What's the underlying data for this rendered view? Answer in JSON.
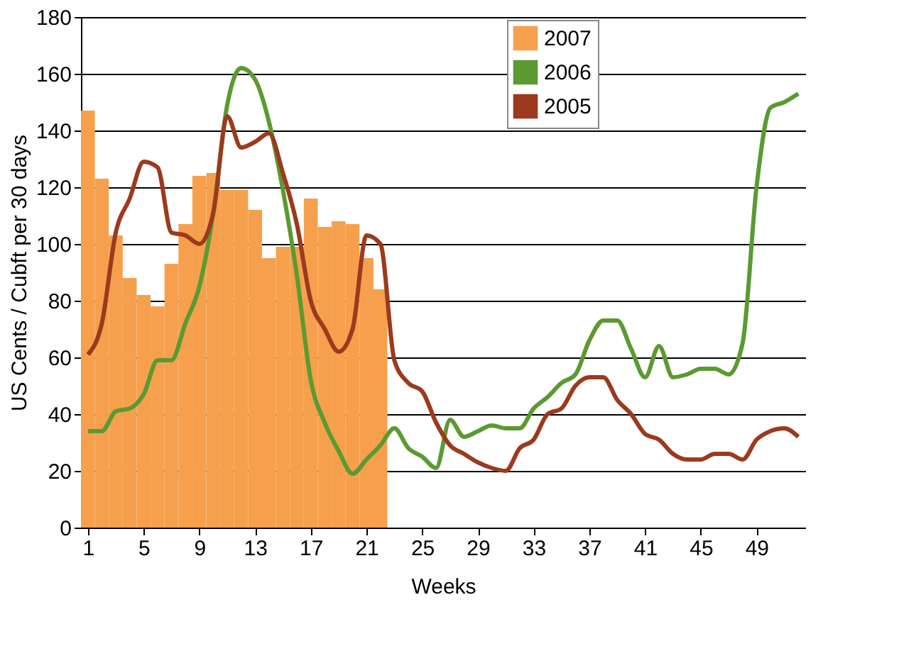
{
  "chart_data": {
    "type": "line",
    "xlabel": "Weeks",
    "ylabel": "US Cents / Cubft per 30 days",
    "xlim": [
      0.5,
      52.5
    ],
    "xticks": [
      1,
      5,
      9,
      13,
      17,
      21,
      25,
      29,
      33,
      37,
      41,
      45,
      49
    ],
    "ylim": [
      0,
      180
    ],
    "yticks": [
      0,
      20,
      40,
      60,
      80,
      100,
      120,
      140,
      160,
      180
    ],
    "grid": "y",
    "legend": "top right",
    "series": [
      {
        "name": "2007",
        "type": "bar",
        "color": "#f6a04d",
        "x": [
          1,
          2,
          3,
          4,
          5,
          6,
          7,
          8,
          9,
          10,
          11,
          12,
          13,
          14,
          15,
          16,
          17,
          18,
          19,
          20,
          21,
          22
        ],
        "values": [
          147,
          123,
          103,
          88,
          82,
          78,
          93,
          107,
          124,
          125,
          119,
          119,
          112,
          95,
          99,
          99,
          116,
          106,
          108,
          107,
          95,
          84
        ]
      },
      {
        "name": "2006",
        "color": "#5b9a31",
        "x": [
          1,
          2,
          3,
          4,
          5,
          6,
          7,
          8,
          9,
          10,
          11,
          12,
          13,
          14,
          15,
          16,
          17,
          18,
          19,
          20,
          21,
          22,
          23,
          24,
          25,
          26,
          27,
          28,
          29,
          30,
          31,
          32,
          33,
          34,
          35,
          36,
          37,
          38,
          39,
          40,
          41,
          42,
          43,
          44,
          45,
          46,
          47,
          48,
          49,
          50,
          51,
          52
        ],
        "values": [
          34,
          34,
          41,
          42,
          47,
          59,
          59,
          72,
          85,
          111,
          149,
          162,
          158,
          143,
          119,
          89,
          52,
          37,
          27,
          19,
          24,
          29,
          35,
          28,
          25,
          21,
          38,
          32,
          34,
          36,
          35,
          35,
          42,
          46,
          51,
          54,
          66,
          73,
          73,
          63,
          53,
          64,
          53,
          54,
          56,
          56,
          54,
          65,
          120,
          148,
          150,
          153
        ]
      },
      {
        "name": "2005",
        "color": "#9b3a1e",
        "x": [
          1,
          2,
          3,
          4,
          5,
          6,
          7,
          8,
          9,
          10,
          11,
          12,
          13,
          14,
          15,
          16,
          17,
          18,
          19,
          20,
          21,
          22,
          23,
          24,
          25,
          26,
          27,
          28,
          29,
          30,
          31,
          32,
          33,
          34,
          35,
          36,
          37,
          38,
          39,
          40,
          41,
          42,
          43,
          44,
          45,
          46,
          47,
          48,
          49,
          50,
          51,
          52
        ],
        "values": [
          61,
          72,
          104,
          116,
          129,
          127,
          104,
          103,
          100,
          111,
          145,
          134,
          136,
          139,
          125,
          107,
          80,
          70,
          62,
          70,
          103,
          100,
          59,
          51,
          48,
          37,
          29,
          26,
          23,
          21,
          20,
          28,
          31,
          40,
          42,
          50,
          53,
          53,
          45,
          40,
          33,
          31,
          26,
          24,
          24,
          26,
          26,
          24,
          31,
          34,
          35,
          32
        ]
      }
    ]
  }
}
